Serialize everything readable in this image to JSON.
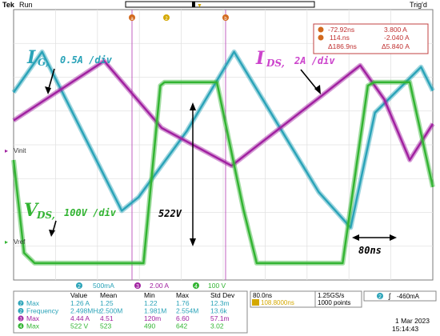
{
  "header": {
    "brand": "Tek",
    "run_state": "Run",
    "trigger_state": "Trig'd"
  },
  "cursors": {
    "a_label": "a",
    "b_label": "b",
    "a_time": "-72.92ns",
    "a_value": "3.800 A",
    "b_time": "114.ns",
    "b_value": "-2.040 A",
    "delta_time": "Δ186.9ns",
    "delta_value": "Δ5.840 A"
  },
  "annotations": {
    "ig_base": "I",
    "ig_sub": "G,",
    "ig_scale": "0.5A /div",
    "ids_base": "I",
    "ids_sub": "DS,",
    "ids_scale": "2A /div",
    "vds_base": "V",
    "vds_sub": "DS,",
    "vds_scale": "100V /div",
    "amplitude": "522V",
    "period": "80ns"
  },
  "markers": {
    "vin_label": "Vinit",
    "vref_label": "Vref"
  },
  "channel_bar": {
    "ch2": {
      "num": "2",
      "scale": "500mA"
    },
    "ch3": {
      "num": "3",
      "scale": "2.00 A"
    },
    "ch4": {
      "num": "4",
      "scale": "100 V"
    }
  },
  "measurements": {
    "columns": [
      "Value",
      "Mean",
      "Min",
      "Max",
      "Std Dev"
    ],
    "rows": [
      {
        "ch": "2",
        "name": "Max",
        "values": [
          "1.26 A",
          "1.25",
          "1.22",
          "1.76",
          "12.3m"
        ]
      },
      {
        "ch": "2",
        "name": "Frequency",
        "values": [
          "2.498MHz",
          "2.500M",
          "1.981M",
          "2.554M",
          "13.6k"
        ]
      },
      {
        "ch": "3",
        "name": "Max",
        "values": [
          "4.44 A",
          "4.51",
          "120m",
          "6.60",
          "57.1m"
        ]
      },
      {
        "ch": "4",
        "name": "Max",
        "values": [
          "522 V",
          "523",
          "490",
          "642",
          "3.02"
        ]
      }
    ]
  },
  "timebase": {
    "scale": "80.0ns",
    "position": "108.8000ns",
    "sample_rate": "1.25GS/s",
    "record_length": "1000 points",
    "trigger_channel": "2",
    "trigger_level": "-460mA",
    "date": "1 Mar 2023",
    "time": "15:14:43"
  },
  "chart_data": {
    "type": "line",
    "x_unit": "divisions",
    "xlim": [
      0,
      10
    ],
    "ylim": [
      -4,
      4
    ],
    "grid": true,
    "series": [
      {
        "name": "IG",
        "color": "#2aa3b8",
        "x": [
          0,
          0.68,
          2.58,
          2.98,
          4.13,
          5.26,
          7.28,
          8.04,
          8.62,
          9.72,
          10
        ],
        "y": [
          1.55,
          2.75,
          -1.95,
          -1.55,
          0.4,
          2.75,
          -1.4,
          -2.45,
          0.95,
          2.3,
          1.6
        ]
      },
      {
        "name": "IDS",
        "color": "#a020a0",
        "x": [
          0,
          2.16,
          3.53,
          5.2,
          5.86,
          7.35,
          8.27,
          8.84,
          9.45,
          10
        ],
        "y": [
          0.72,
          2.48,
          0.5,
          -0.62,
          0.02,
          1.45,
          2.35,
          1.35,
          -0.45,
          0.62
        ]
      },
      {
        "name": "VDS",
        "color": "#32b432",
        "x": [
          0,
          0.25,
          0.5,
          3.1,
          3.5,
          3.6,
          4.85,
          5.48,
          5.8,
          7.85,
          8.45,
          8.6,
          9.45,
          10
        ],
        "y": [
          -0.45,
          -3.2,
          -3.5,
          -3.5,
          1.75,
          1.85,
          1.85,
          -1.9,
          -3.5,
          -3.5,
          1.75,
          1.85,
          1.85,
          -1.25
        ]
      }
    ]
  }
}
